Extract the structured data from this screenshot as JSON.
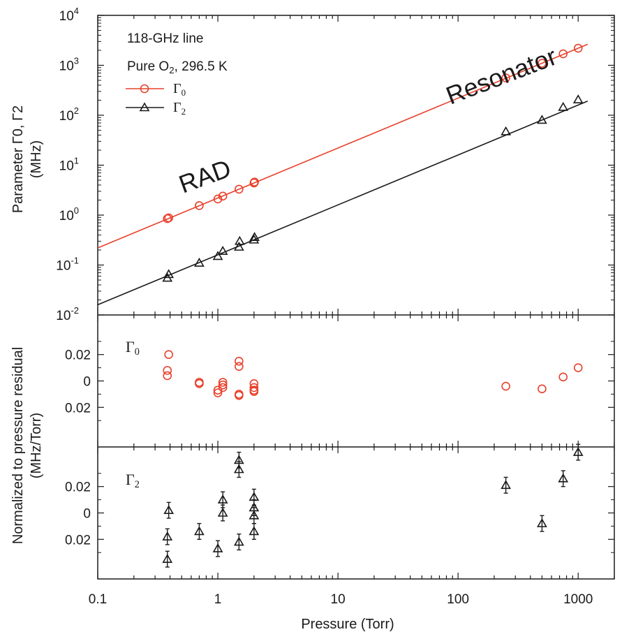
{
  "chart_data": [
    {
      "type": "scatter",
      "panel": "top",
      "xscale": "log",
      "yscale": "log",
      "xlim": [
        0.1,
        2000
      ],
      "ylim": [
        0.01,
        10000
      ],
      "y_ticks": [
        {
          "value": 0.01,
          "base": "10",
          "exp": "-2"
        },
        {
          "value": 0.1,
          "base": "10",
          "exp": "-1"
        },
        {
          "value": 1,
          "base": "10",
          "exp": "0"
        },
        {
          "value": 10,
          "base": "10",
          "exp": "1"
        },
        {
          "value": 100,
          "base": "10",
          "exp": "2"
        },
        {
          "value": 1000,
          "base": "10",
          "exp": "3"
        },
        {
          "value": 10000,
          "base": "10",
          "exp": "4"
        }
      ],
      "ylabel_line1": "Parameter Γ0, Γ2",
      "ylabel_line2": "(MHz)",
      "annotations": {
        "line_name": "118-GHz line",
        "conditions": "Pure O2, 296.5 K",
        "rad": "RAD",
        "resonator": "Resonator"
      },
      "legend": {
        "position": "top-left",
        "entries": [
          "Γ0",
          "Γ2"
        ]
      },
      "series": [
        {
          "name": "Γ0",
          "color": "#e8412c",
          "marker": "circle",
          "fit_slope": 2.2,
          "points": [
            [
              0.38,
              0.85
            ],
            [
              0.39,
              0.88
            ],
            [
              0.7,
              1.55
            ],
            [
              1.0,
              2.1
            ],
            [
              1.1,
              2.4
            ],
            [
              1.5,
              3.3
            ],
            [
              2.0,
              4.4
            ],
            [
              2.02,
              4.6
            ],
            [
              250,
              560
            ],
            [
              500,
              1100
            ],
            [
              750,
              1700
            ],
            [
              1000,
              2200
            ]
          ]
        },
        {
          "name": "Γ2",
          "color": "#1a1a1a",
          "marker": "triangle",
          "fit_slope": 0.16,
          "points": [
            [
              0.38,
              0.055
            ],
            [
              0.39,
              0.065
            ],
            [
              0.7,
              0.11
            ],
            [
              1.0,
              0.15
            ],
            [
              1.1,
              0.19
            ],
            [
              1.5,
              0.23
            ],
            [
              1.52,
              0.3
            ],
            [
              2.0,
              0.32
            ],
            [
              2.02,
              0.36
            ],
            [
              250,
              47
            ],
            [
              500,
              80
            ],
            [
              750,
              145
            ],
            [
              1000,
              205
            ]
          ]
        }
      ]
    },
    {
      "type": "scatter",
      "panel": "middle",
      "xscale": "log",
      "xlim": [
        0.1,
        2000
      ],
      "ylim": [
        -0.05,
        0.05
      ],
      "y_ticks": [
        {
          "value": 0.02,
          "label": "0.02"
        },
        {
          "value": 0,
          "label": "0"
        },
        {
          "value": -0.02,
          "label": "0.02"
        }
      ],
      "panel_label": "Γ0",
      "series": [
        {
          "name": "Γ0",
          "color": "#e8412c",
          "marker": "circle",
          "points": [
            [
              0.38,
              0.004
            ],
            [
              0.38,
              0.008
            ],
            [
              0.39,
              0.02
            ],
            [
              0.7,
              -0.001
            ],
            [
              0.7,
              -0.002
            ],
            [
              1.0,
              -0.007
            ],
            [
              1.0,
              -0.009
            ],
            [
              1.1,
              -0.001
            ],
            [
              1.1,
              -0.003
            ],
            [
              1.1,
              -0.005
            ],
            [
              1.5,
              0.015
            ],
            [
              1.5,
              0.011
            ],
            [
              1.5,
              -0.01
            ],
            [
              1.5,
              -0.011
            ],
            [
              2.0,
              -0.002
            ],
            [
              2.0,
              -0.005
            ],
            [
              2.0,
              -0.007
            ],
            [
              2.0,
              -0.008
            ],
            [
              250,
              -0.004
            ],
            [
              500,
              -0.006
            ],
            [
              750,
              0.003
            ],
            [
              1000,
              0.01
            ]
          ]
        }
      ]
    },
    {
      "type": "scatter",
      "panel": "bottom",
      "xscale": "log",
      "xlim": [
        0.1,
        2000
      ],
      "ylim": [
        -0.05,
        0.05
      ],
      "y_ticks": [
        {
          "value": 0.02,
          "label": "0.02"
        },
        {
          "value": 0,
          "label": "0"
        },
        {
          "value": -0.02,
          "label": "0.02"
        }
      ],
      "x_ticks": [
        {
          "value": 0.1,
          "label": "0.1"
        },
        {
          "value": 1,
          "label": "1"
        },
        {
          "value": 10,
          "label": "10"
        },
        {
          "value": 100,
          "label": "100"
        },
        {
          "value": 1000,
          "label": "1000"
        }
      ],
      "xlabel": "Pressure (Torr)",
      "panel_label": "Γ2",
      "series": [
        {
          "name": "Γ2",
          "color": "#1a1a1a",
          "marker": "triangle",
          "error_bar": 0.006,
          "points": [
            [
              0.38,
              -0.018
            ],
            [
              0.38,
              -0.035
            ],
            [
              0.39,
              0.002
            ],
            [
              0.7,
              -0.014
            ],
            [
              1.0,
              -0.027
            ],
            [
              1.1,
              0.01
            ],
            [
              1.1,
              0.0
            ],
            [
              1.5,
              0.04
            ],
            [
              1.5,
              0.033
            ],
            [
              1.5,
              -0.022
            ],
            [
              2.0,
              0.012
            ],
            [
              2.0,
              0.004
            ],
            [
              2.0,
              -0.002
            ],
            [
              2.0,
              -0.014
            ],
            [
              250,
              0.021
            ],
            [
              500,
              -0.008
            ],
            [
              750,
              0.026
            ],
            [
              1000,
              0.046
            ]
          ]
        }
      ]
    }
  ],
  "shared_ylabel": {
    "line1": "Normalized to pressure residual",
    "line2": "(MHz/Torr)"
  }
}
